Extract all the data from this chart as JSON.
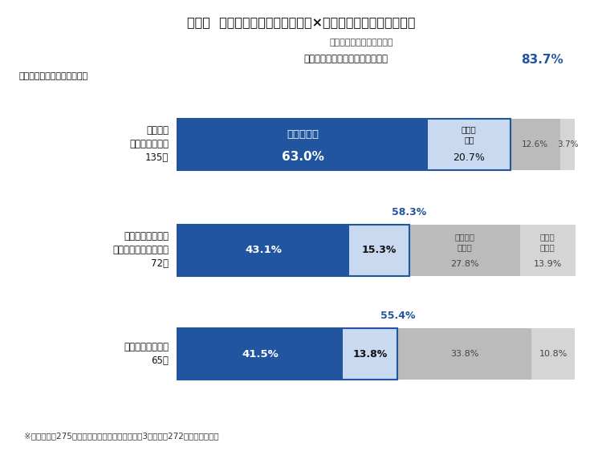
{
  "title": "図表２  社外への送出：副業・兼業×自律的なキャリア形成支援",
  "subtitle1": "（社外での副業・兼業を）",
  "subtitle2_prefix": "「認めている」＋「認める予定」",
  "subtitle2_value": "83.7%",
  "ylabel_note": "（自律的なキャリア形成に）",
  "footnote": "※全回答企業275社のうち、当該質問に未回答の3社を除く272社における比率",
  "rows": [
    {
      "label": "積極的に\n取り組んでいる\n135社",
      "segments": [
        63.0,
        20.7,
        12.6,
        3.7
      ],
      "seg_labels_top": [
        "認めている",
        null,
        null,
        null
      ],
      "seg_labels_pct": [
        "63.0%",
        "20.7%",
        "12.6%",
        "3.7%"
      ],
      "seg_labels_extra": [
        null,
        "認める\n予定",
        null,
        null
      ],
      "sum_label": null,
      "sum_pct": null
    },
    {
      "label": "積極的ではないが\n適度に取り組んでいる\n72社",
      "segments": [
        43.1,
        15.3,
        27.8,
        13.9
      ],
      "seg_labels_top": [
        null,
        null,
        "検討して\nいない",
        "認めて\nいない"
      ],
      "seg_labels_pct": [
        "43.1%",
        "15.3%",
        "27.8%",
        "13.9%"
      ],
      "seg_labels_extra": [
        null,
        null,
        null,
        null
      ],
      "sum_label": "58.3%",
      "sum_pct": 58.3
    },
    {
      "label": "取り組んでいない\n65社",
      "segments": [
        41.5,
        13.8,
        33.8,
        10.8
      ],
      "seg_labels_top": [
        null,
        null,
        null,
        null
      ],
      "seg_labels_pct": [
        "41.5%",
        "13.8%",
        "33.8%",
        "10.8%"
      ],
      "seg_labels_extra": [
        null,
        null,
        null,
        null
      ],
      "sum_label": "55.4%",
      "sum_pct": 55.4
    }
  ],
  "bg_color": "#FFFFFF",
  "blue_color": "#2155A0",
  "border_color": "#2155A0",
  "light_blue": "#C8D9F0",
  "gray1": "#BBBBBB",
  "gray2": "#D5D5D5",
  "seg_colors": [
    "#2155A0",
    "#C8D9F0",
    "#BBBBBB",
    "#D5D5D5"
  ],
  "seg_text_colors": [
    "#FFFFFF",
    "#111111",
    "#444444",
    "#444444"
  ]
}
